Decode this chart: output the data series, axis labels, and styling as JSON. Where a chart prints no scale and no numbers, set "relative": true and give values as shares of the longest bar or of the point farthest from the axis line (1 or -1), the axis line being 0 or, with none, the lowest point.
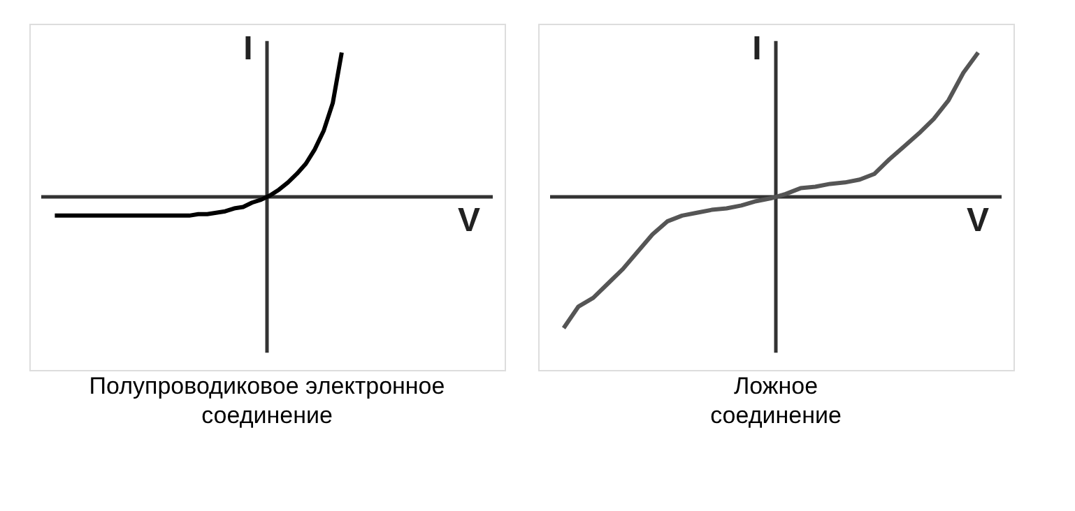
{
  "chart_data": [
    {
      "type": "line",
      "relative": true,
      "xlabel": "V",
      "ylabel": "I",
      "title": "Полупроводиковое электронное\nсоединение",
      "categories": [
        null,
        null,
        null,
        null,
        null,
        null,
        null,
        null,
        null,
        null,
        null,
        null,
        null,
        null,
        null,
        null,
        null,
        null,
        null,
        null,
        null,
        null,
        null,
        null,
        null,
        null,
        null,
        null,
        null,
        null,
        null,
        null,
        null
      ],
      "series": [
        {
          "color": "#000000",
          "values": [
            -0.13,
            -0.13,
            -0.13,
            -0.13,
            -0.13,
            -0.13,
            -0.13,
            -0.13,
            -0.13,
            -0.13,
            -0.13,
            -0.13,
            -0.13,
            -0.13,
            -0.13,
            -0.13,
            -0.12,
            -0.12,
            -0.11,
            -0.1,
            -0.08,
            -0.07,
            -0.04,
            -0.02,
            0.01,
            0.05,
            0.1,
            0.16,
            0.23,
            0.33,
            0.46,
            0.65,
            1.0
          ]
        }
      ]
    },
    {
      "type": "line",
      "relative": true,
      "xlabel": "V",
      "ylabel": "I",
      "title": "Ложное\nсоединение",
      "categories": [
        null,
        null,
        null,
        null,
        null,
        null,
        null,
        null,
        null,
        null,
        null,
        null,
        null,
        null,
        null,
        null,
        null,
        null,
        null,
        null,
        null,
        null,
        null,
        null,
        null,
        null,
        null,
        null,
        null
      ],
      "series": [
        {
          "color": "#555555",
          "values": [
            -0.91,
            -0.76,
            -0.7,
            -0.6,
            -0.5,
            -0.38,
            -0.26,
            -0.17,
            -0.13,
            -0.11,
            -0.09,
            -0.08,
            -0.06,
            -0.03,
            -0.01,
            0.02,
            0.06,
            0.07,
            0.09,
            0.1,
            0.12,
            0.16,
            0.26,
            0.35,
            0.44,
            0.54,
            0.67,
            0.86,
            1.0
          ]
        }
      ]
    }
  ]
}
